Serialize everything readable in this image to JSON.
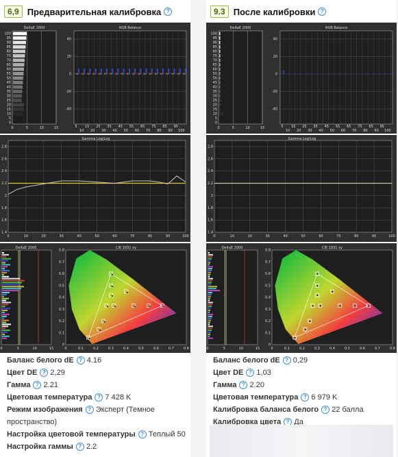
{
  "left": {
    "score": "6,9",
    "title": "Предварительная калибровка",
    "charts": {
      "deltae_title": "DeltaE 2000",
      "rgb_title": "RGB Balance",
      "gamma_title": "Gamma Log/Log",
      "deltae2_title": "DeltaE 2000",
      "cie_title": "CIE 1931 xy"
    },
    "stats": [
      {
        "label": "Баланс белого dE",
        "value": "4.16"
      },
      {
        "label": "Цвет DE",
        "value": "2,29"
      },
      {
        "label": "Гамма",
        "value": "2.21"
      },
      {
        "label": "Цветовая температура",
        "value": "7 428 K"
      },
      {
        "label": "Режим изображения",
        "value": "Эксперт (Темное пространство)"
      },
      {
        "label": "Настройка цветовой температуры",
        "value": "Теплый 50"
      },
      {
        "label": "Настройка гаммы",
        "value": "2.2"
      }
    ]
  },
  "right": {
    "score": "9.3",
    "title": "После калибровки",
    "charts": {
      "deltae_title": "DeltaE 2000",
      "rgb_title": "RGB Balance",
      "gamma_title": "Gamma Log/Log",
      "deltae2_title": "DeltaE 2000",
      "cie_title": "CIE 1931 xy"
    },
    "stats": [
      {
        "label": "Баланс белого dE",
        "value": "0,29"
      },
      {
        "label": "Цвет DE",
        "value": "1,03"
      },
      {
        "label": "Гамма",
        "value": "2.20"
      },
      {
        "label": "Цветовая температура",
        "value": "6 979 K"
      },
      {
        "label": "Калибровка баланса белого",
        "value": "22 балла"
      },
      {
        "label": "Калибровка цвета",
        "value": "Да"
      }
    ]
  },
  "axes": {
    "deltae_y_ticks": [
      "100",
      "95",
      "90",
      "85",
      "80",
      "75",
      "70",
      "65",
      "60",
      "55",
      "50",
      "45",
      "40",
      "35",
      "30",
      "25",
      "20",
      "15",
      "10",
      "5",
      "0"
    ],
    "deltae_x_ticks": [
      "0",
      "5",
      "10",
      "15"
    ],
    "rgb_y_ticks": [
      "40",
      "20",
      "0",
      "-20",
      "-40"
    ],
    "rgb_x_ticks_top": [
      "5",
      "15",
      "25",
      "35",
      "45",
      "55",
      "65",
      "75",
      "85",
      "95"
    ],
    "rgb_x_ticks_bottom": [
      "10",
      "20",
      "30",
      "40",
      "50",
      "60",
      "70",
      "80",
      "90",
      "100"
    ],
    "gamma_y_ticks": [
      "2.8",
      "2.6",
      "2.4",
      "2.2",
      "2",
      "1.8",
      "1.6",
      "1.4"
    ],
    "gamma_x_ticks": [
      "0",
      "10",
      "20",
      "30",
      "40",
      "50",
      "60",
      "70",
      "80",
      "90",
      "100"
    ],
    "cie_y_ticks": [
      "0.8",
      "0.7",
      "0.6",
      "0.5",
      "0.4",
      "0.3",
      "0.2",
      "0.1",
      "0"
    ],
    "cie_x_ticks": [
      "0",
      "0.1",
      "0.2",
      "0.3",
      "0.4",
      "0.5",
      "0.6",
      "0.7",
      "0.8"
    ]
  },
  "chart_data": [
    {
      "type": "line",
      "title": "Gamma Log/Log (before)",
      "x": [
        0,
        5,
        10,
        20,
        30,
        40,
        50,
        60,
        70,
        80,
        85,
        90,
        95,
        100
      ],
      "y": [
        2.02,
        2.1,
        2.14,
        2.19,
        2.24,
        2.24,
        2.22,
        2.2,
        2.24,
        2.24,
        2.22,
        2.19,
        2.32,
        2.22
      ],
      "ylim": [
        1.4,
        2.9
      ]
    },
    {
      "type": "line",
      "title": "Gamma Log/Log (after)",
      "x": [
        0,
        100
      ],
      "y": [
        2.2,
        2.2
      ],
      "ylim": [
        1.4,
        2.9
      ]
    }
  ],
  "colors": {
    "score_border": "#9ab93a",
    "accent": "#3a8fd6",
    "panel": "#2f2f2f"
  }
}
